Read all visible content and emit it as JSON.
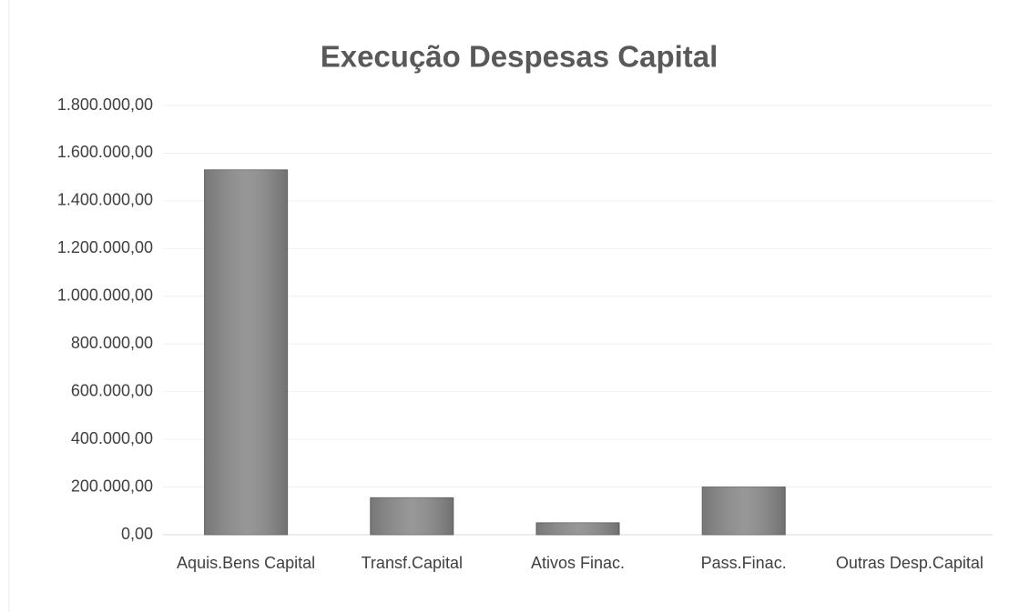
{
  "chart_data": {
    "type": "bar",
    "title": "Execução Despesas Capital",
    "categories": [
      "Aquis.Bens Capital",
      "Transf.Capital",
      "Ativos Finac.",
      "Pass.Finac.",
      "Outras Desp.Capital"
    ],
    "values": [
      1530000,
      155000,
      50000,
      200000,
      0
    ],
    "color": "#8c8c8c",
    "ylim": [
      0,
      1800000
    ],
    "yticks": [
      {
        "value": 0,
        "label": "0,00"
      },
      {
        "value": 200000,
        "label": "200.000,00"
      },
      {
        "value": 400000,
        "label": "400.000,00"
      },
      {
        "value": 600000,
        "label": "600.000,00"
      },
      {
        "value": 800000,
        "label": "800.000,00"
      },
      {
        "value": 1000000,
        "label": "1.000.000,00"
      },
      {
        "value": 1200000,
        "label": "1.200.000,00"
      },
      {
        "value": 1400000,
        "label": "1.400.000,00"
      },
      {
        "value": 1600000,
        "label": "1.600.000,00"
      },
      {
        "value": 1800000,
        "label": "1.800.000,00"
      }
    ],
    "grid": true
  }
}
